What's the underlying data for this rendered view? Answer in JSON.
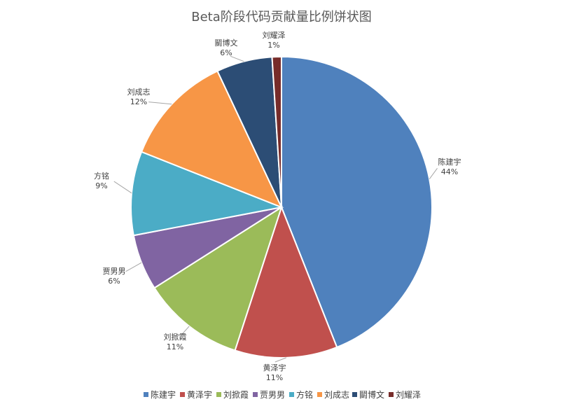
{
  "chart_data": {
    "type": "pie",
    "title": "Beta阶段代码贡献量比例饼状图",
    "categories": [
      "陈建宇",
      "黄泽宇",
      "刘掀霞",
      "贾男男",
      "方铭",
      "刘成志",
      "鬭博文",
      "刘耀泽"
    ],
    "values": [
      44,
      11,
      11,
      6,
      9,
      12,
      6,
      1
    ],
    "labels": [
      "44%",
      "11%",
      "11%",
      "6%",
      "9%",
      "12%",
      "6%",
      "1%"
    ],
    "colors": [
      "#4f81bd",
      "#c0504d",
      "#9bbb59",
      "#8064a2",
      "#4bacc6",
      "#f79646",
      "#2c4d75",
      "#772c2a"
    ],
    "legend": "bottom"
  }
}
